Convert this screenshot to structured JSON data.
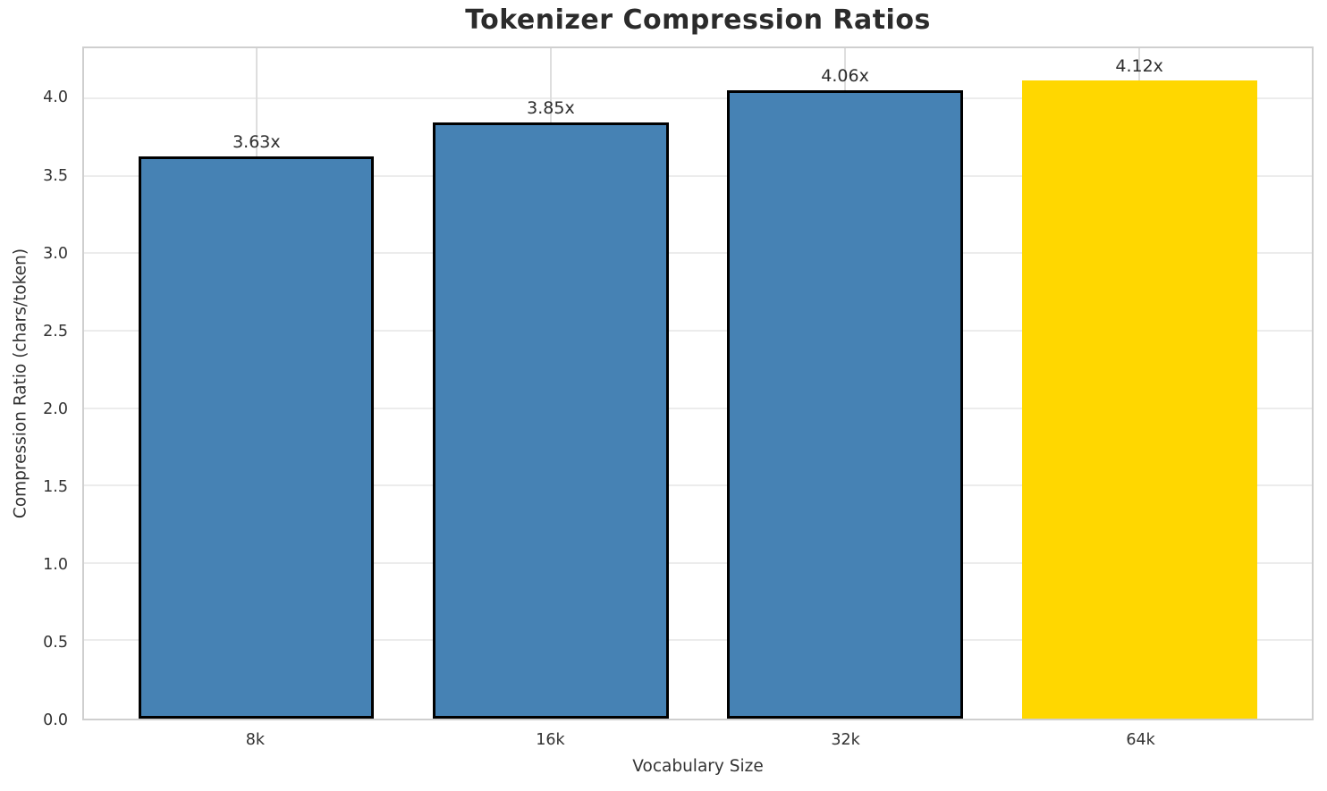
{
  "chart_data": {
    "type": "bar",
    "title": "Tokenizer Compression Ratios",
    "xlabel": "Vocabulary Size",
    "ylabel": "Compression Ratio (chars/token)",
    "categories": [
      "8k",
      "16k",
      "32k",
      "64k"
    ],
    "values": [
      3.63,
      3.85,
      4.06,
      4.12
    ],
    "value_labels": [
      "3.63x",
      "3.85x",
      "4.06x",
      "4.12x"
    ],
    "bar_colors": [
      "#4682B4",
      "#4682B4",
      "#4682B4",
      "#FFD700"
    ],
    "bar_edge_colors": [
      "#000000",
      "#000000",
      "#000000",
      "none"
    ],
    "yticks": [
      0.0,
      0.5,
      1.0,
      1.5,
      2.0,
      2.5,
      3.0,
      3.5,
      4.0
    ],
    "ylim": [
      0,
      4.33
    ],
    "grid": true,
    "legend": "none",
    "colors": {
      "default_bar": "#4682B4",
      "highlight_bar": "#FFD700",
      "grid": "#e8e8e8",
      "spine": "#cfcfcf",
      "text": "#333333",
      "title_text": "#2b2b2b"
    }
  }
}
